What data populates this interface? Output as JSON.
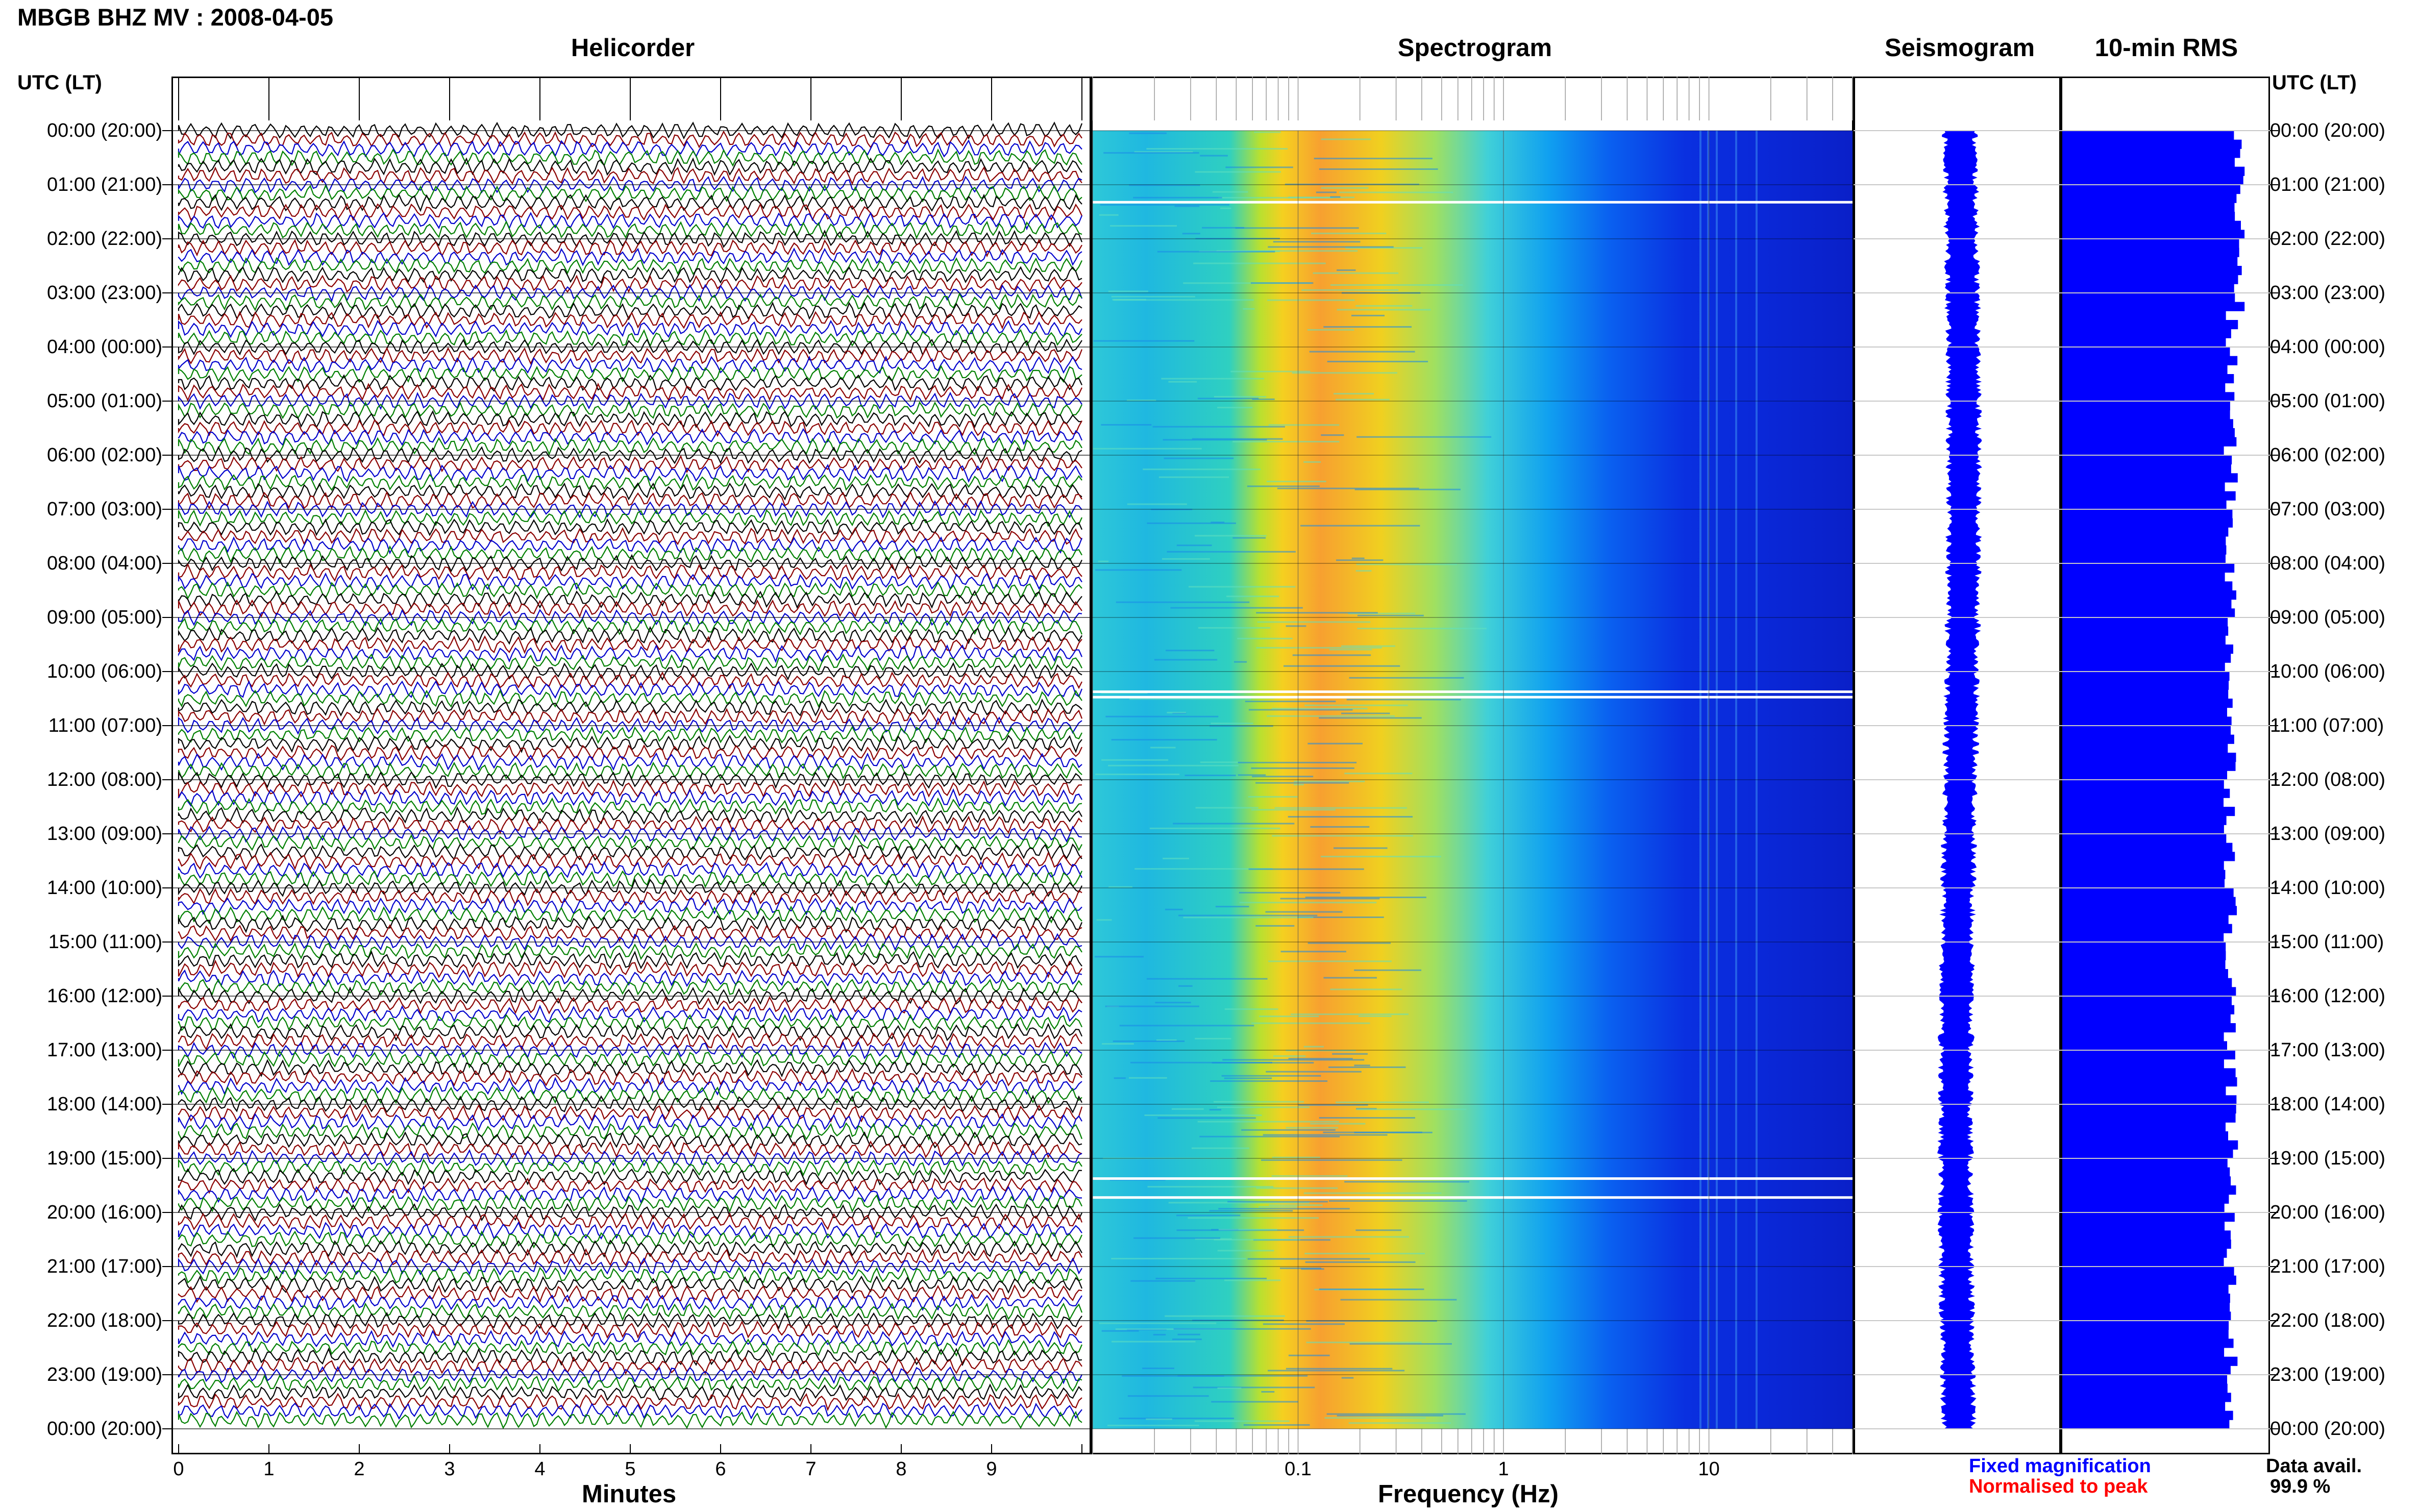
{
  "header": {
    "title": "MBGB BHZ MV : 2008-04-05",
    "utc_label_left": "UTC (LT)",
    "utc_label_right": "UTC (LT)"
  },
  "panels": {
    "helicorder": "Helicorder",
    "spectrogram": "Spectrogram",
    "seismogram": "Seismogram",
    "rms": "10-min RMS"
  },
  "time_labels": [
    "00:00 (20:00)",
    "01:00 (21:00)",
    "02:00 (22:00)",
    "03:00 (23:00)",
    "04:00 (00:00)",
    "05:00 (01:00)",
    "06:00 (02:00)",
    "07:00 (03:00)",
    "08:00 (04:00)",
    "09:00 (05:00)",
    "10:00 (06:00)",
    "11:00 (07:00)",
    "12:00 (08:00)",
    "13:00 (09:00)",
    "14:00 (10:00)",
    "15:00 (11:00)",
    "16:00 (12:00)",
    "17:00 (13:00)",
    "18:00 (14:00)",
    "19:00 (15:00)",
    "20:00 (16:00)",
    "21:00 (17:00)",
    "22:00 (18:00)",
    "23:00 (19:00)",
    "00:00 (20:00)"
  ],
  "footer": {
    "fixed_magnification": "Fixed magnification",
    "normalised_to_peak": "Normalised to peak",
    "data_avail_label": "Data avail.",
    "data_avail_value": "99.9 %"
  },
  "colors": {
    "trace_cycle": [
      "#000000",
      "#8b0000",
      "#0000cd",
      "#008000"
    ],
    "rms_bar": "#0000ff",
    "seismogram": "#0000ff",
    "fixed_magnification": "#0000ff",
    "normalised_to_peak": "#ff0000"
  },
  "chart_data": [
    {
      "type": "line",
      "title": "Helicorder",
      "xlabel": "Minutes",
      "x_ticks": [
        "0",
        "1",
        "2",
        "3",
        "4",
        "5",
        "6",
        "7",
        "8",
        "9"
      ],
      "xlim": [
        0,
        10
      ],
      "rows_per_hour": 6,
      "y_ticks": "time_labels"
    },
    {
      "type": "heatmap",
      "title": "Spectrogram",
      "xlabel": "Frequency (Hz)",
      "x_scale": "log",
      "x_ticks": [
        "0.1",
        "1",
        "10"
      ],
      "xlim": [
        0.01,
        50
      ],
      "colormap": "jet",
      "peak_band_hz": [
        0.2,
        0.5
      ],
      "data_gaps_utc": [
        "01:15",
        "10:20",
        "19:20",
        "19:40"
      ]
    },
    {
      "type": "line",
      "title": "Seismogram"
    },
    {
      "type": "bar",
      "title": "10-min RMS",
      "orientation": "horizontal",
      "bins": 144,
      "relative_level_note": "nearly constant, ~0.85 of panel width"
    }
  ]
}
